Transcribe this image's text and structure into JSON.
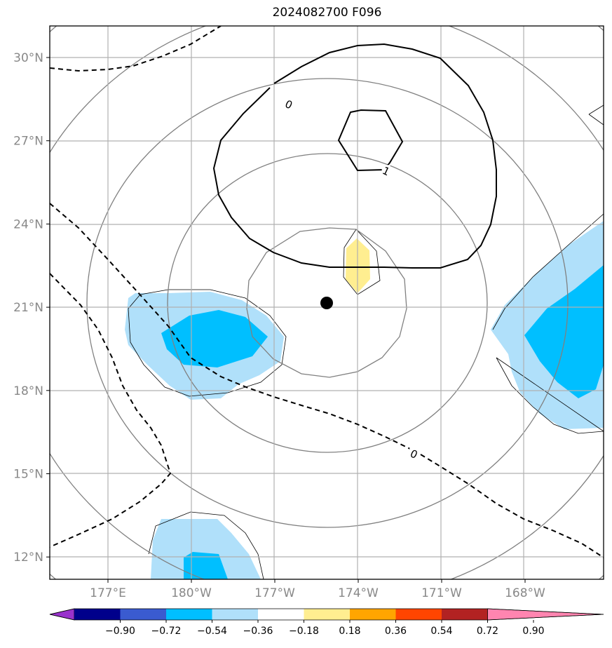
{
  "title": "2024082700 F096",
  "lat_ticks": [
    {
      "label": "30°N",
      "value": 30
    },
    {
      "label": "27°N",
      "value": 27
    },
    {
      "label": "24°N",
      "value": 24
    },
    {
      "label": "21°N",
      "value": 21
    },
    {
      "label": "18°N",
      "value": 18
    },
    {
      "label": "15°N",
      "value": 15
    },
    {
      "label": "12°N",
      "value": 12
    }
  ],
  "lon_ticks": [
    {
      "label": "177°E",
      "value": 177
    },
    {
      "label": "180°W",
      "value": 180
    },
    {
      "label": "177°W",
      "value": 183
    },
    {
      "label": "174°W",
      "value": 186
    },
    {
      "label": "171°W",
      "value": 189
    },
    {
      "label": "168°W",
      "value": 192
    }
  ],
  "contour_labels": [
    {
      "text": "0",
      "lon": 183.5,
      "lat": 28.3
    },
    {
      "text": "1",
      "lon": 187.0,
      "lat": 25.9
    },
    {
      "text": "0",
      "lon": 188.0,
      "lat": 15.7
    }
  ],
  "storm_center": {
    "lon": 185.4,
    "lat": 21.15
  },
  "colorbar": {
    "colors": [
      "#9932cc",
      "#00008b",
      "#3a5bd0",
      "#00bfff",
      "#b0e0fa",
      "#ffffff",
      "#ffee90",
      "#ffa500",
      "#ff4500",
      "#b22222",
      "#ff85b0"
    ],
    "labels": [
      "−0.90",
      "−0.72",
      "−0.54",
      "−0.36",
      "−0.18",
      "0.18",
      "0.36",
      "0.54",
      "0.72",
      "0.90"
    ]
  }
}
